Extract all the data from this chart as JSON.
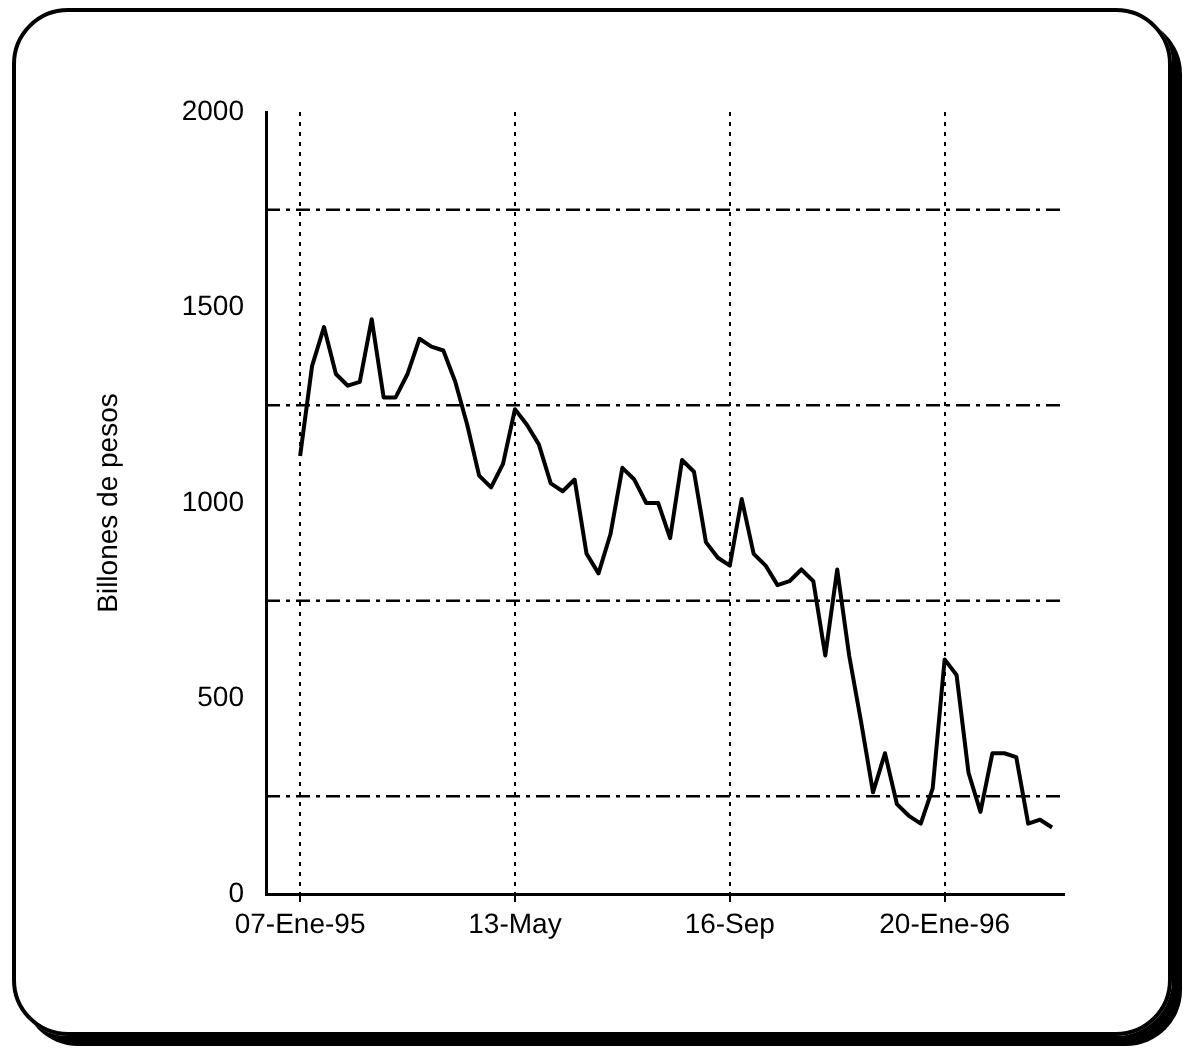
{
  "chart_data": {
    "type": "line",
    "ylabel": "Billones de pesos",
    "x": [
      "1995-01-07",
      "1995-01-14",
      "1995-01-21",
      "1995-01-28",
      "1995-02-04",
      "1995-02-11",
      "1995-02-18",
      "1995-02-25",
      "1995-03-04",
      "1995-03-11",
      "1995-03-18",
      "1995-03-25",
      "1995-04-01",
      "1995-04-08",
      "1995-04-15",
      "1995-04-22",
      "1995-04-29",
      "1995-05-06",
      "1995-05-13",
      "1995-05-20",
      "1995-05-27",
      "1995-06-03",
      "1995-06-10",
      "1995-06-17",
      "1995-06-24",
      "1995-07-01",
      "1995-07-08",
      "1995-07-15",
      "1995-07-22",
      "1995-07-29",
      "1995-08-05",
      "1995-08-12",
      "1995-08-19",
      "1995-08-26",
      "1995-09-02",
      "1995-09-09",
      "1995-09-16",
      "1995-09-23",
      "1995-09-30",
      "1995-10-07",
      "1995-10-14",
      "1995-10-21",
      "1995-10-28",
      "1995-11-04",
      "1995-11-11",
      "1995-11-18",
      "1995-11-25",
      "1995-12-02",
      "1995-12-09",
      "1995-12-16",
      "1995-12-23",
      "1995-12-30",
      "1996-01-06",
      "1996-01-13",
      "1996-01-20",
      "1996-01-27",
      "1996-02-03",
      "1996-02-10",
      "1996-02-17",
      "1996-02-24",
      "1996-03-02",
      "1996-03-09",
      "1996-03-16",
      "1996-03-23"
    ],
    "series": [
      {
        "color": "#000000",
        "values": [
          1120,
          1350,
          1450,
          1330,
          1300,
          1310,
          1470,
          1270,
          1270,
          1330,
          1420,
          1400,
          1390,
          1310,
          1200,
          1070,
          1040,
          1100,
          1240,
          1200,
          1150,
          1050,
          1030,
          1060,
          870,
          820,
          920,
          1090,
          1060,
          1000,
          1000,
          910,
          1110,
          1080,
          900,
          860,
          840,
          1010,
          870,
          840,
          790,
          800,
          830,
          800,
          610,
          830,
          610,
          440,
          260,
          360,
          230,
          200,
          180,
          270,
          600,
          560,
          310,
          210,
          360,
          360,
          350,
          180,
          190,
          170
        ]
      }
    ],
    "xlim": [
      "1994-12-18",
      "1996-03-30"
    ],
    "xticks": [
      {
        "value": "1995-01-07",
        "label": "07-Ene-95"
      },
      {
        "value": "1995-05-13",
        "label": "13-May"
      },
      {
        "value": "1995-09-16",
        "label": "16-Sep"
      },
      {
        "value": "1996-01-20",
        "label": "20-Ene-96"
      }
    ],
    "ylim": [
      0,
      2000
    ],
    "yticks": [
      0,
      500,
      1000,
      1500,
      2000
    ],
    "grid": "x",
    "ref_lines": [
      {
        "axis": "y",
        "value": 250,
        "line_style": "dashed",
        "color": "#000000"
      },
      {
        "axis": "y",
        "value": 750,
        "line_style": "dashed",
        "color": "#000000"
      },
      {
        "axis": "y",
        "value": 1250,
        "line_style": "dashed",
        "color": "#000000"
      },
      {
        "axis": "y",
        "value": 1750,
        "line_style": "dashed",
        "color": "#000000"
      }
    ]
  }
}
